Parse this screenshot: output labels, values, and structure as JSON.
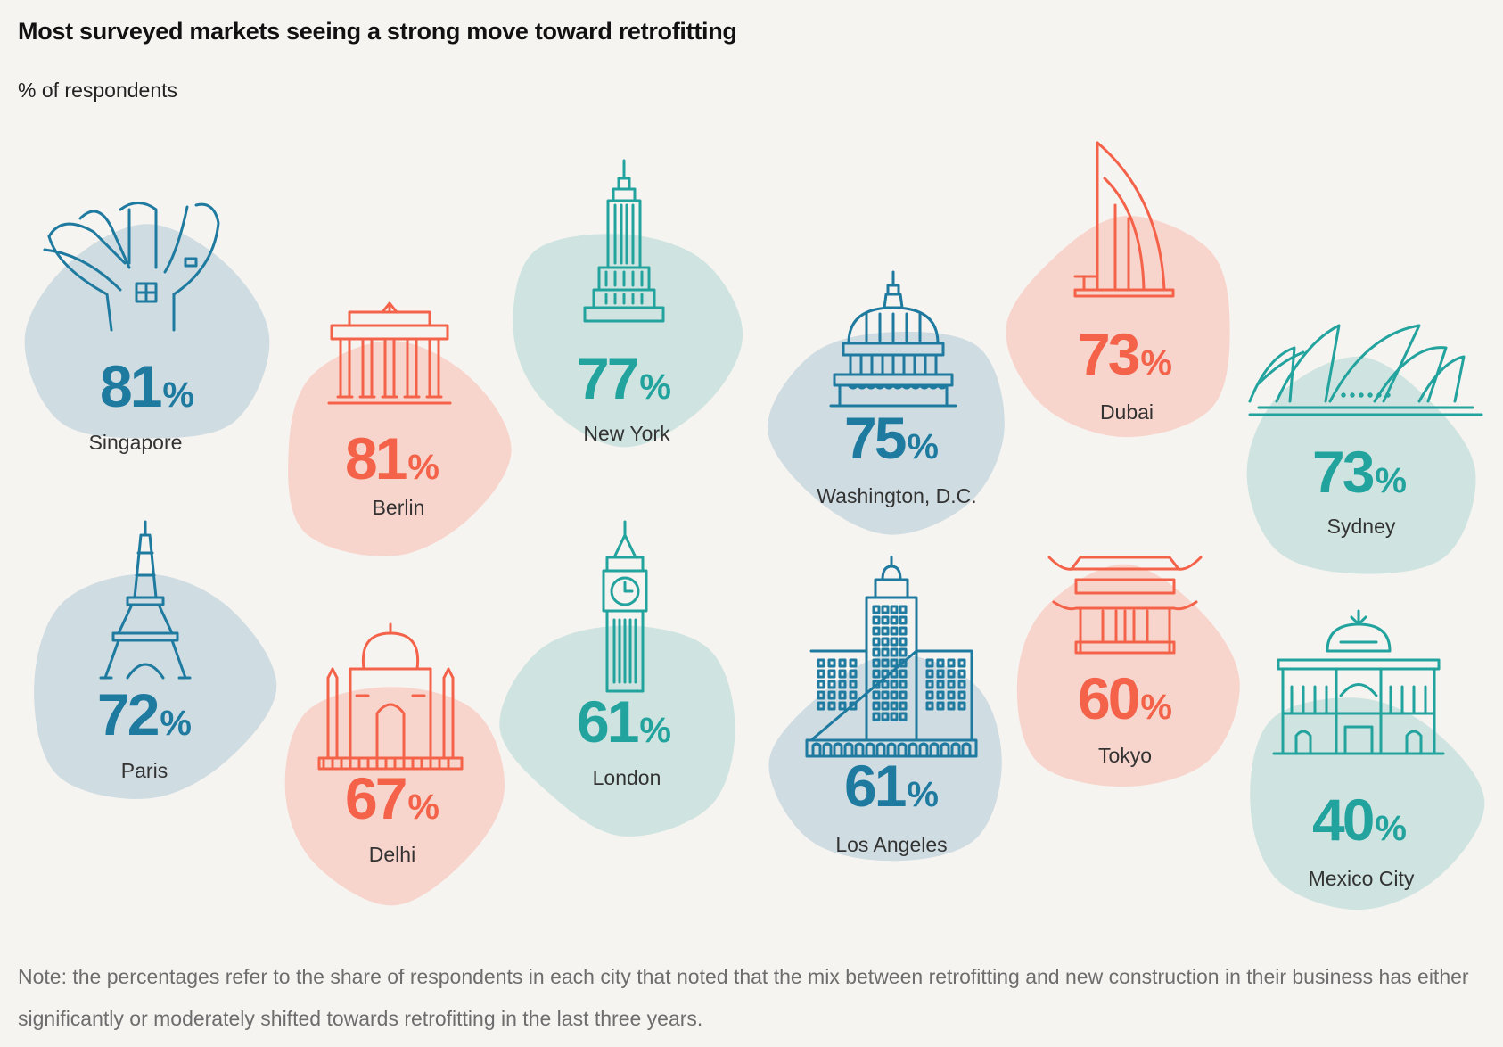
{
  "title": "Most surveyed markets seeing a strong move toward retrofitting",
  "subtitle": "% of respondents",
  "note": "Note: the percentages refer to the share of respondents in each city that noted that the mix between retrofitting and new construction in their business has either significantly or moderately shifted towards retrofitting in the last three years.",
  "colors": {
    "blue": "#1f7aa0",
    "blue_bg": "#cfdce2",
    "red": "#f4624a",
    "red_bg": "#f8d5cc",
    "teal": "#23a39e",
    "teal_bg": "#cfe4e0",
    "background": "#f6f4f1"
  },
  "chart_data": {
    "type": "table",
    "unit": "%",
    "cities": [
      {
        "name": "Singapore",
        "value": 81,
        "color": "blue",
        "icon": "artscience-museum-icon"
      },
      {
        "name": "Berlin",
        "value": 81,
        "color": "red",
        "icon": "brandenburg-gate-icon"
      },
      {
        "name": "New York",
        "value": 77,
        "color": "teal",
        "icon": "empire-state-building-icon"
      },
      {
        "name": "Washington, D.C.",
        "value": 75,
        "color": "blue",
        "icon": "capitol-dome-icon"
      },
      {
        "name": "Dubai",
        "value": 73,
        "color": "red",
        "icon": "burj-al-arab-icon"
      },
      {
        "name": "Sydney",
        "value": 73,
        "color": "teal",
        "icon": "opera-house-icon"
      },
      {
        "name": "Paris",
        "value": 72,
        "color": "blue",
        "icon": "eiffel-tower-icon"
      },
      {
        "name": "Delhi",
        "value": 67,
        "color": "red",
        "icon": "taj-mahal-icon"
      },
      {
        "name": "London",
        "value": 61,
        "color": "teal",
        "icon": "big-ben-icon"
      },
      {
        "name": "Los Angeles",
        "value": 61,
        "color": "blue",
        "icon": "city-hall-icon"
      },
      {
        "name": "Tokyo",
        "value": 60,
        "color": "red",
        "icon": "temple-gate-icon"
      },
      {
        "name": "Mexico City",
        "value": 40,
        "color": "teal",
        "icon": "palacio-bellas-artes-icon"
      }
    ]
  }
}
